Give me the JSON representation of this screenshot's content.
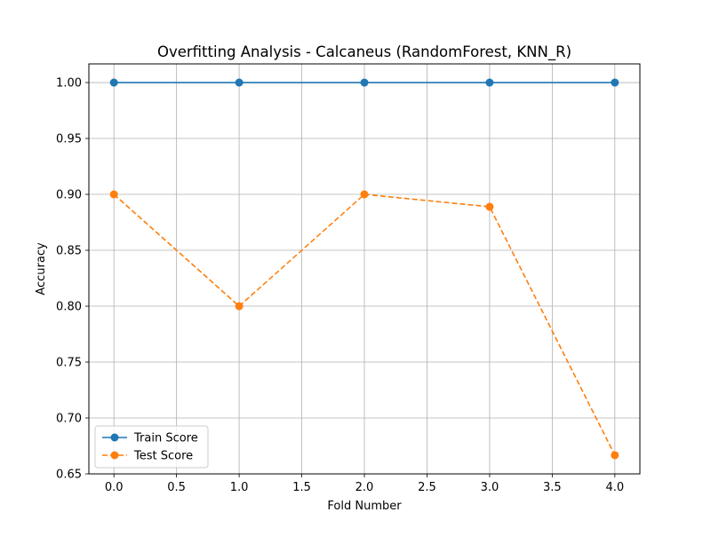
{
  "chart_data": {
    "type": "line",
    "title": "Overfitting Analysis - Calcaneus (RandomForest, KNN_R)",
    "xlabel": "Fold Number",
    "ylabel": "Accuracy",
    "x": [
      0,
      1,
      2,
      3,
      4
    ],
    "xlim": [
      -0.2,
      4.2
    ],
    "ylim": [
      0.65,
      1.0167
    ],
    "xticks": [
      0.0,
      0.5,
      1.0,
      1.5,
      2.0,
      2.5,
      3.0,
      3.5,
      4.0
    ],
    "xtick_labels": [
      "0.0",
      "0.5",
      "1.0",
      "1.5",
      "2.0",
      "2.5",
      "3.0",
      "3.5",
      "4.0"
    ],
    "yticks": [
      0.65,
      0.7,
      0.75,
      0.8,
      0.85,
      0.9,
      0.95,
      1.0
    ],
    "ytick_labels": [
      "0.65",
      "0.70",
      "0.75",
      "0.80",
      "0.85",
      "0.90",
      "0.95",
      "1.00"
    ],
    "grid": true,
    "legend_position": "lower-left",
    "series": [
      {
        "name": "Train Score",
        "values": [
          1.0,
          1.0,
          1.0,
          1.0,
          1.0
        ],
        "color": "#1f77b4",
        "linestyle": "solid",
        "marker": "circle"
      },
      {
        "name": "Test Score",
        "values": [
          0.9,
          0.8,
          0.9,
          0.8889,
          0.6667
        ],
        "color": "#ff7f0e",
        "linestyle": "dashed",
        "marker": "circle"
      }
    ]
  }
}
